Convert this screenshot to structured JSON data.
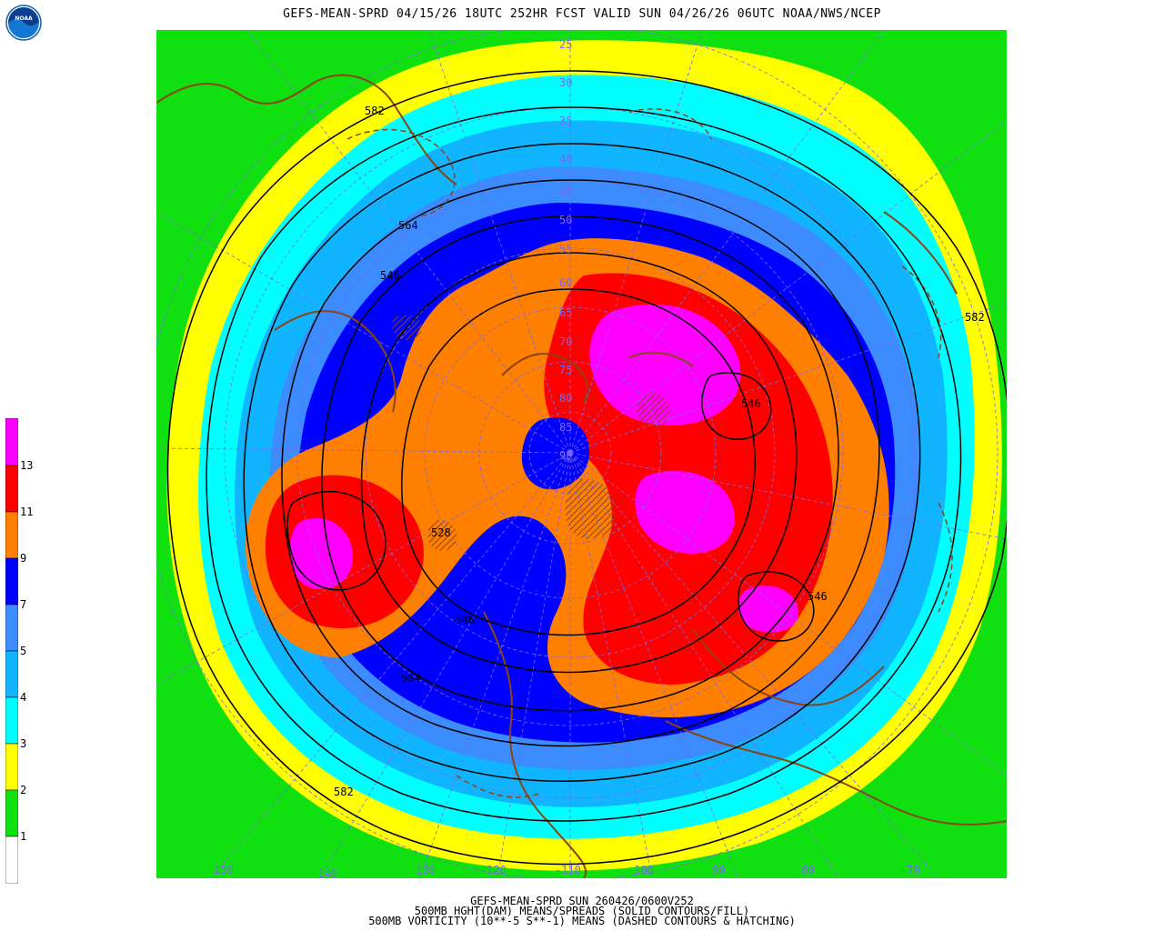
{
  "header": {
    "title": "GEFS-MEAN-SPRD 04/15/26 18UTC 252HR FCST VALID SUN 04/26/26 06UTC NOAA/NWS/NCEP",
    "logo_text": "NOAA"
  },
  "footer": {
    "line1": "GEFS-MEAN-SPRD SUN 260426/0600V252",
    "line2": "500MB HGHT(DAM) MEANS/SPREADS (SOLID CONTOURS/FILL)",
    "line3": "500MB VORTICITY (10**-5 S**-1) MEANS (DASHED CONTOURS & HATCHING)"
  },
  "colorbar": {
    "labels": [
      "1",
      "2",
      "3",
      "4",
      "5",
      "7",
      "9",
      "11",
      "13"
    ],
    "colors": [
      "#ffffff",
      "#10e010",
      "#ffff00",
      "#00ffff",
      "#10b4ff",
      "#3c8cff",
      "#0000ff",
      "#ff8000",
      "#ff0000",
      "#ff00ff"
    ]
  },
  "map": {
    "latitude_labels": [
      "25",
      "30",
      "35",
      "40",
      "45",
      "50",
      "55",
      "60",
      "65",
      "70",
      "75",
      "80",
      "85",
      "90"
    ],
    "longitude_labels": [
      "-150",
      "-140",
      "-130",
      "-120",
      "-110",
      "-100",
      "-90",
      "-80",
      "-70"
    ],
    "contour_labels": [
      "582",
      "582",
      "582",
      "564",
      "564",
      "546",
      "546",
      "546",
      "546",
      "528"
    ],
    "spread_colors": {
      "green": "#10e010",
      "yellow": "#ffff00",
      "cyan": "#00ffff",
      "skyblue": "#10b4ff",
      "blue2": "#3c8cff",
      "blue": "#0000ff",
      "orange": "#ff8000",
      "red": "#ff0000",
      "magenta": "#ff00ff",
      "coast": "#8b4513",
      "grid": "#7b68ee"
    }
  }
}
